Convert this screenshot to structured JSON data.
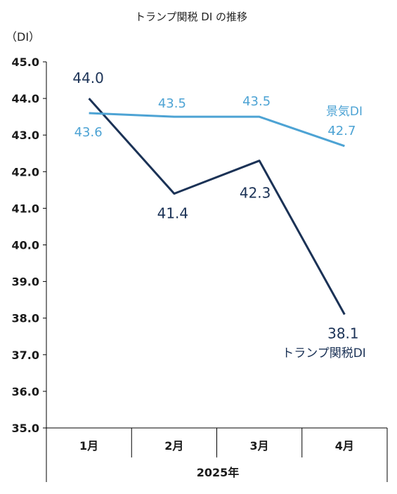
{
  "chart_data": {
    "type": "line",
    "title": "トランプ関税 DI の推移",
    "ylabel": "（DI）",
    "xlabel": "2025年",
    "categories": [
      "1月",
      "2月",
      "3月",
      "4月"
    ],
    "ylim": [
      35.0,
      45.0
    ],
    "yticks": [
      "35.0",
      "36.0",
      "37.0",
      "38.0",
      "39.0",
      "40.0",
      "41.0",
      "42.0",
      "43.0",
      "44.0",
      "45.0"
    ],
    "grid": false,
    "series": [
      {
        "name": "トランプ関税DI",
        "color": "#1b3256",
        "values": [
          44.0,
          41.4,
          42.3,
          38.1
        ],
        "labels": [
          "44.0",
          "41.4",
          "42.3",
          "38.1"
        ]
      },
      {
        "name": "景気DI",
        "color": "#4da3d4",
        "values": [
          43.6,
          43.5,
          43.5,
          42.7
        ],
        "labels": [
          "43.6",
          "43.5",
          "43.5",
          "42.7"
        ]
      }
    ]
  }
}
